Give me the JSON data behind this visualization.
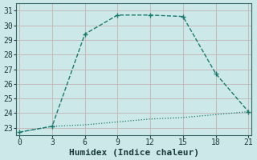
{
  "xlabel": "Humidex (Indice chaleur)",
  "bg_color": "#cce8e8",
  "plot_bg_color": "#cce8e8",
  "grid_color": "#aad4d4",
  "line_color": "#1a7a6e",
  "line1_x": [
    0,
    3,
    6,
    9,
    12,
    15,
    18,
    21
  ],
  "line1_y": [
    22.7,
    23.1,
    29.4,
    30.7,
    30.7,
    30.6,
    26.7,
    24.1
  ],
  "line2_x": [
    0,
    3,
    6,
    9,
    12,
    15,
    18,
    21
  ],
  "line2_y": [
    22.7,
    23.1,
    23.2,
    23.4,
    23.6,
    23.7,
    23.9,
    24.1
  ],
  "xlim": [
    -0.3,
    21.3
  ],
  "ylim": [
    22.5,
    31.5
  ],
  "xticks": [
    0,
    3,
    6,
    9,
    12,
    15,
    18,
    21
  ],
  "yticks": [
    23,
    24,
    25,
    26,
    27,
    28,
    29,
    30,
    31
  ],
  "axis_fontsize": 7,
  "tick_fontsize": 7,
  "xlabel_fontsize": 8
}
